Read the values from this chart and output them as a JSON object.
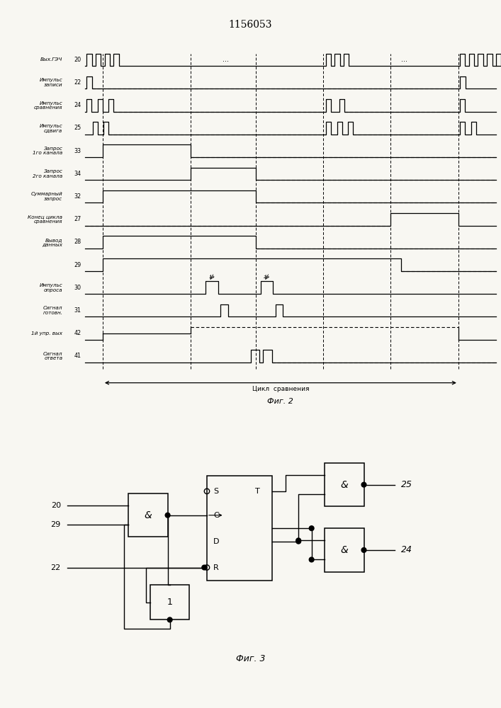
{
  "title": "1156053",
  "fig2_caption": "Фиг. 2",
  "fig3_caption": "Фиг. 3",
  "cycle_label": "Цикл  сравнения",
  "signals": [
    {
      "label": "Вых.ГЭЧ",
      "num": "20"
    },
    {
      "label": "Импульс\nзаписи",
      "num": "22"
    },
    {
      "label": "Импульс\nсравнения",
      "num": "24"
    },
    {
      "label": "Импульс\nсдвига",
      "num": "25"
    },
    {
      "label": "Запрос\n1го канала",
      "num": "33"
    },
    {
      "label": "Запрос\n2го канала",
      "num": "34"
    },
    {
      "label": "Суммарный\nзапрос",
      "num": "32"
    },
    {
      "label": "Конец цикла\nсравнения",
      "num": "27"
    },
    {
      "label": "Вывод\nданных",
      "num": "28"
    },
    {
      "label": "",
      "num": "29"
    },
    {
      "label": "Импульс\nопроса",
      "num": "30"
    },
    {
      "label": "Сигнал\nготовн.",
      "num": "31"
    },
    {
      "label": "1й упр. вых",
      "num": "42"
    },
    {
      "label": "Сигнал\nответа",
      "num": "41"
    }
  ],
  "bg": "#f8f7f2",
  "lc": "#000000"
}
